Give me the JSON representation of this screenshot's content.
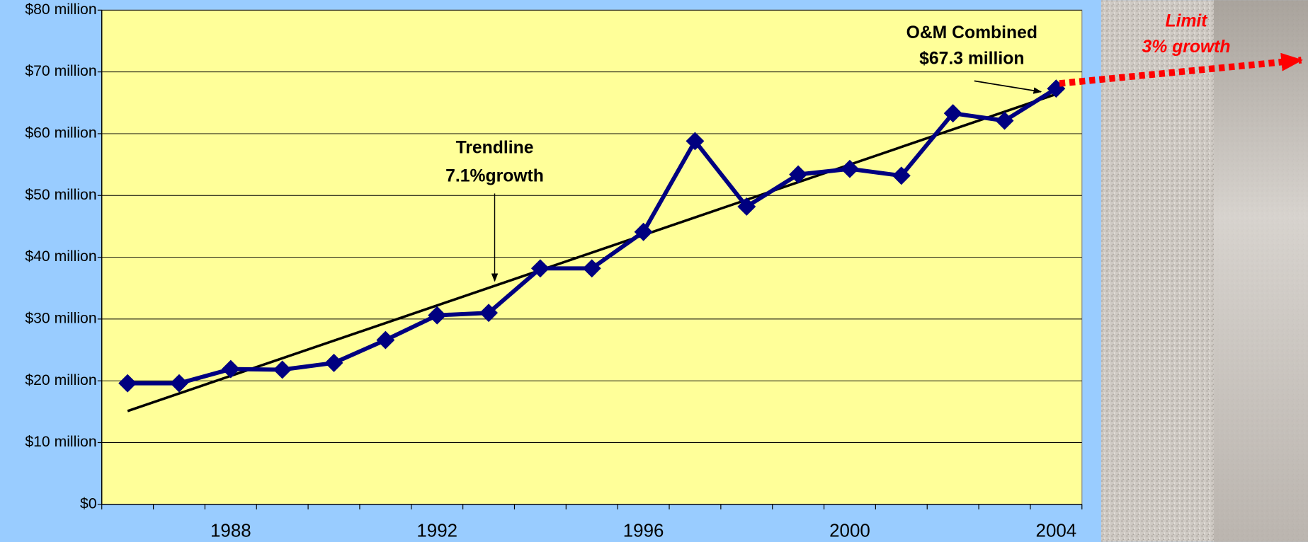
{
  "chart_data": {
    "type": "line",
    "categories": [
      null,
      null,
      "1988",
      null,
      null,
      null,
      "1992",
      null,
      null,
      null,
      "1996",
      null,
      null,
      null,
      "2000",
      null,
      null,
      null,
      "2004"
    ],
    "series": [
      {
        "name": "O&M Combined",
        "color": "#000080",
        "values": [
          19.6,
          19.6,
          21.9,
          21.8,
          22.9,
          26.6,
          30.6,
          31.0,
          38.2,
          38.2,
          44.1,
          58.8,
          48.2,
          53.4,
          54.3,
          53.2,
          63.3,
          62.1,
          67.3
        ]
      }
    ],
    "trendline": {
      "start": 15.1,
      "end": 66.4,
      "color": "#000000"
    },
    "ylim": [
      0,
      80
    ],
    "yticks": [
      {
        "value": 0,
        "label": "$0"
      },
      {
        "value": 10,
        "label": "$10 million"
      },
      {
        "value": 20,
        "label": "$20 million"
      },
      {
        "value": 30,
        "label": "$30 million"
      },
      {
        "value": 40,
        "label": "$40 million"
      },
      {
        "value": 50,
        "label": "$50 million"
      },
      {
        "value": 60,
        "label": "$60 million"
      },
      {
        "value": 70,
        "label": "$70 million"
      },
      {
        "value": 80,
        "label": "$80 million"
      }
    ],
    "grid": true,
    "annotations": {
      "combined": [
        "O&M Combined",
        "$67.3 million"
      ],
      "trend": [
        "Trendline",
        "7.1%growth"
      ],
      "limit": [
        "Limit",
        "3% growth"
      ]
    }
  }
}
